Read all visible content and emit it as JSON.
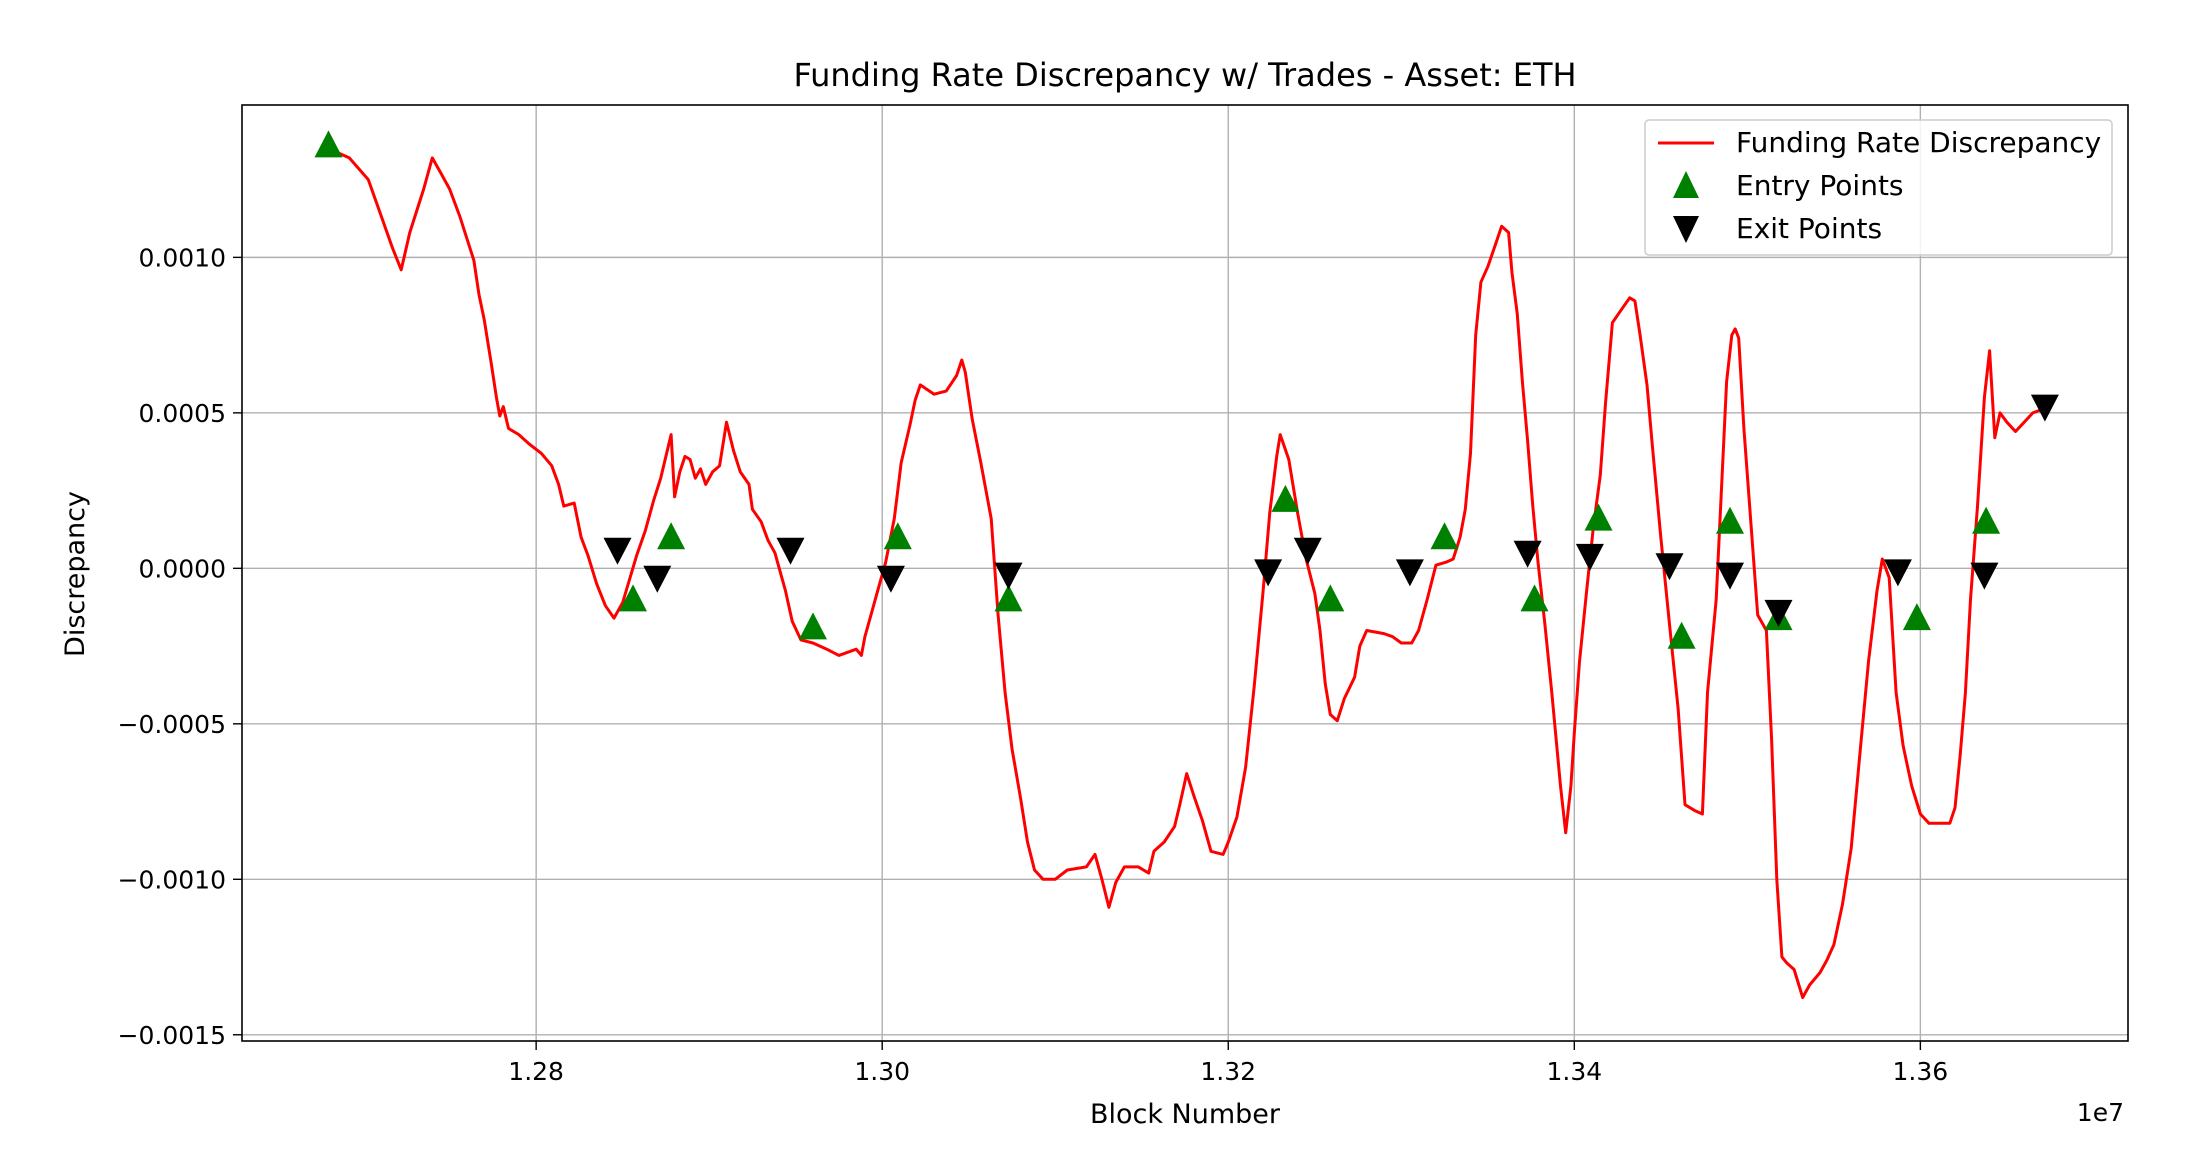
{
  "chart_data": {
    "type": "line",
    "title": "Funding Rate Discrepancy w/ Trades - Asset: ETH",
    "xlabel": "Block Number",
    "ylabel": "Discrepancy",
    "x_offset_label": "1e7",
    "xlim": [
      12630000,
      13720000
    ],
    "ylim": [
      -0.00152,
      0.00149
    ],
    "x_ticks": [
      12800000,
      13000000,
      13200000,
      13400000,
      13600000
    ],
    "x_tick_labels": [
      "1.28",
      "1.30",
      "1.32",
      "1.34",
      "1.36"
    ],
    "y_ticks": [
      -0.0015,
      -0.001,
      -0.0005,
      0.0,
      0.0005,
      0.001
    ],
    "y_tick_labels": [
      "−0.0015",
      "−0.0010",
      "−0.0005",
      "0.0000",
      "0.0005",
      "0.0010"
    ],
    "grid": true,
    "legend_position": "top-right",
    "series": [
      {
        "name": "Funding Rate Discrepancy",
        "color": "#ff0000",
        "points": [
          [
            12680000,
            0.00137
          ],
          [
            12684000,
            0.00134
          ],
          [
            12692000,
            0.00132
          ],
          [
            12703000,
            0.00125
          ],
          [
            12710000,
            0.00114
          ],
          [
            12717000,
            0.00103
          ],
          [
            12722000,
            0.00096
          ],
          [
            12727000,
            0.00108
          ],
          [
            12735000,
            0.00122
          ],
          [
            12740000,
            0.00132
          ],
          [
            12745000,
            0.00127
          ],
          [
            12750000,
            0.00122
          ],
          [
            12756000,
            0.00113
          ],
          [
            12764000,
            0.00099
          ],
          [
            12767000,
            0.00088
          ],
          [
            12770000,
            0.0008
          ],
          [
            12774000,
            0.00066
          ],
          [
            12777000,
            0.00055
          ],
          [
            12779000,
            0.00049
          ],
          [
            12781000,
            0.00052
          ],
          [
            12784000,
            0.00045
          ],
          [
            12790000,
            0.00043
          ],
          [
            12796000,
            0.0004
          ],
          [
            12803000,
            0.00037
          ],
          [
            12809000,
            0.00033
          ],
          [
            12813000,
            0.00027
          ],
          [
            12816000,
            0.0002
          ],
          [
            12822000,
            0.00021
          ],
          [
            12826000,
            0.0001
          ],
          [
            12830000,
            4e-05
          ],
          [
            12835000,
            -5e-05
          ],
          [
            12840000,
            -0.00012
          ],
          [
            12845000,
            -0.00016
          ],
          [
            12850000,
            -0.00011
          ],
          [
            12858000,
            4e-05
          ],
          [
            12863000,
            0.00012
          ],
          [
            12868000,
            0.00022
          ],
          [
            12872000,
            0.00029
          ],
          [
            12875000,
            0.00036
          ],
          [
            12878000,
            0.00043
          ],
          [
            12880000,
            0.00023
          ],
          [
            12883000,
            0.00031
          ],
          [
            12886000,
            0.00036
          ],
          [
            12889000,
            0.00035
          ],
          [
            12892000,
            0.00029
          ],
          [
            12895000,
            0.00032
          ],
          [
            12898000,
            0.00027
          ],
          [
            12902000,
            0.00031
          ],
          [
            12906000,
            0.00033
          ],
          [
            12910000,
            0.00047
          ],
          [
            12914000,
            0.00038
          ],
          [
            12918000,
            0.00031
          ],
          [
            12923000,
            0.00027
          ],
          [
            12925000,
            0.00019
          ],
          [
            12930000,
            0.00015
          ],
          [
            12934000,
            9e-05
          ],
          [
            12938000,
            5e-05
          ],
          [
            12944000,
            -7e-05
          ],
          [
            12948000,
            -0.00017
          ],
          [
            12953000,
            -0.00023
          ],
          [
            12960000,
            -0.00024
          ],
          [
            12968000,
            -0.00026
          ],
          [
            12975000,
            -0.00028
          ],
          [
            12980000,
            -0.00027
          ],
          [
            12985000,
            -0.00026
          ],
          [
            12988000,
            -0.00028
          ],
          [
            12990000,
            -0.00022
          ],
          [
            12993000,
            -0.00016
          ],
          [
            12997000,
            -8e-05
          ],
          [
            13002000,
            2e-05
          ],
          [
            13007000,
            0.00016
          ],
          [
            13011000,
            0.00034
          ],
          [
            13016000,
            0.00046
          ],
          [
            13019000,
            0.00054
          ],
          [
            13022000,
            0.00059
          ],
          [
            13030000,
            0.00056
          ],
          [
            13037000,
            0.00057
          ],
          [
            13043000,
            0.00062
          ],
          [
            13046000,
            0.00067
          ],
          [
            13048000,
            0.00063
          ],
          [
            13052000,
            0.00048
          ],
          [
            13057000,
            0.00034
          ],
          [
            13063000,
            0.00016
          ],
          [
            13067000,
            -0.00015
          ],
          [
            13071000,
            -0.0004
          ],
          [
            13075000,
            -0.00058
          ],
          [
            13080000,
            -0.00074
          ],
          [
            13084000,
            -0.00088
          ],
          [
            13088000,
            -0.00097
          ],
          [
            13093000,
            -0.001
          ],
          [
            13100000,
            -0.001
          ],
          [
            13107000,
            -0.00097
          ],
          [
            13118000,
            -0.00096
          ],
          [
            13123000,
            -0.00092
          ],
          [
            13127000,
            -0.001
          ],
          [
            13131000,
            -0.00109
          ],
          [
            13135000,
            -0.00101
          ],
          [
            13140000,
            -0.00096
          ],
          [
            13148000,
            -0.00096
          ],
          [
            13154000,
            -0.00098
          ],
          [
            13157000,
            -0.00091
          ],
          [
            13163000,
            -0.00088
          ],
          [
            13169000,
            -0.00083
          ],
          [
            13172000,
            -0.00076
          ],
          [
            13176000,
            -0.00066
          ],
          [
            13180000,
            -0.00073
          ],
          [
            13185000,
            -0.00081
          ],
          [
            13190000,
            -0.00091
          ],
          [
            13197000,
            -0.00092
          ],
          [
            13200000,
            -0.00088
          ],
          [
            13205000,
            -0.0008
          ],
          [
            13210000,
            -0.00064
          ],
          [
            13215000,
            -0.00038
          ],
          [
            13220000,
            -8e-05
          ],
          [
            13224000,
            0.00018
          ],
          [
            13228000,
            0.00036
          ],
          [
            13230000,
            0.00043
          ],
          [
            13235000,
            0.00035
          ],
          [
            13240000,
            0.00018
          ],
          [
            13245000,
            3e-05
          ],
          [
            13250000,
            -8e-05
          ],
          [
            13253000,
            -0.0002
          ],
          [
            13256000,
            -0.00037
          ],
          [
            13259000,
            -0.00047
          ],
          [
            13263000,
            -0.00049
          ],
          [
            13267000,
            -0.00042
          ],
          [
            13273000,
            -0.00035
          ],
          [
            13276000,
            -0.00025
          ],
          [
            13280000,
            -0.0002
          ],
          [
            13290000,
            -0.00021
          ],
          [
            13295000,
            -0.00022
          ],
          [
            13300000,
            -0.00024
          ],
          [
            13306000,
            -0.00024
          ],
          [
            13310000,
            -0.0002
          ],
          [
            13315000,
            -0.0001
          ],
          [
            13320000,
            1e-05
          ],
          [
            13326000,
            2e-05
          ],
          [
            13330000,
            3e-05
          ],
          [
            13334000,
            0.0001
          ],
          [
            13337000,
            0.00019
          ],
          [
            13340000,
            0.00037
          ],
          [
            13343000,
            0.00075
          ],
          [
            13346000,
            0.00092
          ],
          [
            13350000,
            0.00097
          ],
          [
            13355000,
            0.00105
          ],
          [
            13358000,
            0.0011
          ],
          [
            13362000,
            0.00108
          ],
          [
            13364000,
            0.00095
          ],
          [
            13367000,
            0.00082
          ],
          [
            13370000,
            0.0006
          ],
          [
            13373000,
            0.00041
          ],
          [
            13376000,
            0.0002
          ],
          [
            13379000,
            2e-05
          ],
          [
            13383000,
            -0.00018
          ],
          [
            13387000,
            -0.0004
          ],
          [
            13392000,
            -0.0007
          ],
          [
            13395000,
            -0.00085
          ],
          [
            13398000,
            -0.0007
          ],
          [
            13400000,
            -0.00053
          ],
          [
            13403000,
            -0.0003
          ],
          [
            13407000,
            -8e-05
          ],
          [
            13411000,
            0.00013
          ],
          [
            13415000,
            0.0003
          ],
          [
            13418000,
            0.00053
          ],
          [
            13422000,
            0.00079
          ],
          [
            13427000,
            0.00083
          ],
          [
            13432000,
            0.00087
          ],
          [
            13435000,
            0.00086
          ],
          [
            13438000,
            0.00075
          ],
          [
            13442000,
            0.00059
          ],
          [
            13445000,
            0.0004
          ],
          [
            13450000,
            0.0001
          ],
          [
            13455000,
            -0.00018
          ],
          [
            13460000,
            -0.00045
          ],
          [
            13464000,
            -0.00076
          ],
          [
            13470000,
            -0.00078
          ],
          [
            13474000,
            -0.00079
          ],
          [
            13477000,
            -0.0004
          ],
          [
            13482000,
            -0.0001
          ],
          [
            13485000,
            0.00025
          ],
          [
            13488000,
            0.0006
          ],
          [
            13491000,
            0.00075
          ],
          [
            13493000,
            0.00077
          ],
          [
            13495000,
            0.00074
          ],
          [
            13498000,
            0.00045
          ],
          [
            13502000,
            0.00015
          ],
          [
            13506000,
            -0.00015
          ],
          [
            13511000,
            -0.0002
          ],
          [
            13514000,
            -0.00055
          ],
          [
            13517000,
            -0.001
          ],
          [
            13520000,
            -0.00125
          ],
          [
            13523000,
            -0.00127
          ],
          [
            13527000,
            -0.00129
          ],
          [
            13532000,
            -0.00138
          ],
          [
            13536000,
            -0.00134
          ],
          [
            13542000,
            -0.0013
          ],
          [
            13546000,
            -0.00126
          ],
          [
            13550000,
            -0.00121
          ],
          [
            13555000,
            -0.00108
          ],
          [
            13560000,
            -0.0009
          ],
          [
            13565000,
            -0.0006
          ],
          [
            13570000,
            -0.0003
          ],
          [
            13575000,
            -7e-05
          ],
          [
            13578000,
            3e-05
          ],
          [
            13582000,
            -3e-05
          ],
          [
            13586000,
            -0.0004
          ],
          [
            13590000,
            -0.00057
          ],
          [
            13595000,
            -0.0007
          ],
          [
            13600000,
            -0.00079
          ],
          [
            13605000,
            -0.00082
          ],
          [
            13612000,
            -0.00082
          ],
          [
            13617000,
            -0.00082
          ],
          [
            13620000,
            -0.00077
          ],
          [
            13623000,
            -0.0006
          ],
          [
            13626000,
            -0.0004
          ],
          [
            13629000,
            -0.0001
          ],
          [
            13633000,
            0.0002
          ],
          [
            13637000,
            0.00055
          ],
          [
            13640000,
            0.0007
          ],
          [
            13643000,
            0.00042
          ],
          [
            13646000,
            0.0005
          ],
          [
            13650000,
            0.00047
          ],
          [
            13655000,
            0.00044
          ],
          [
            13660000,
            0.00047
          ],
          [
            13665000,
            0.0005
          ],
          [
            13670000,
            0.00051
          ]
        ]
      },
      {
        "name": "Entry Points",
        "color": "#008000",
        "marker": "triangle-up",
        "points": [
          [
            12680000,
            0.00136
          ],
          [
            12856000,
            -0.0001
          ],
          [
            12878000,
            0.0001
          ],
          [
            12960000,
            -0.00019
          ],
          [
            13009000,
            0.0001
          ],
          [
            13073000,
            -0.0001
          ],
          [
            13233000,
            0.00022
          ],
          [
            13259000,
            -0.0001
          ],
          [
            13325000,
            0.0001
          ],
          [
            13377000,
            -0.0001
          ],
          [
            13414000,
            0.00016
          ],
          [
            13462000,
            -0.00022
          ],
          [
            13490000,
            0.00015
          ],
          [
            13518000,
            -0.00016
          ],
          [
            13598000,
            -0.00016
          ],
          [
            13638000,
            0.00015
          ]
        ]
      },
      {
        "name": "Exit Points",
        "color": "#000000",
        "marker": "triangle-down",
        "points": [
          [
            12847000,
            6e-05
          ],
          [
            12870000,
            -3e-05
          ],
          [
            12947000,
            6e-05
          ],
          [
            13005000,
            -3e-05
          ],
          [
            13073000,
            -2e-05
          ],
          [
            13223000,
            -1e-05
          ],
          [
            13246000,
            6e-05
          ],
          [
            13305000,
            -1e-05
          ],
          [
            13373000,
            5e-05
          ],
          [
            13409000,
            4e-05
          ],
          [
            13455000,
            1e-05
          ],
          [
            13490000,
            -2e-05
          ],
          [
            13518000,
            -0.00014
          ],
          [
            13587000,
            -1e-05
          ],
          [
            13637000,
            -2e-05
          ],
          [
            13672000,
            0.00052
          ]
        ]
      }
    ]
  }
}
